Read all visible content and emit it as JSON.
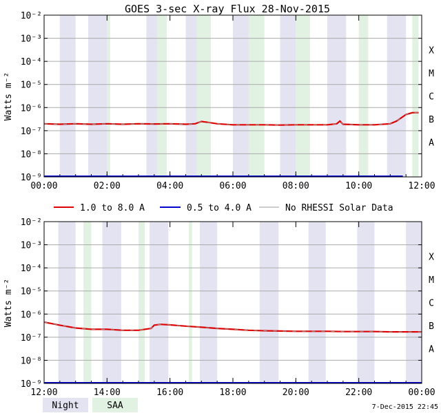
{
  "title": "GOES 3-sec X-ray Flux   28-Nov-2015",
  "ylabel": "Watts m⁻²",
  "footer_timestamp": "7-Dec-2015 22:45",
  "colors": {
    "long_channel": "#dd0000",
    "short_channel": "#0000cc",
    "no_rhessi": "#999999",
    "night_band": "#e3e3f1",
    "saa_band": "#e2f2e2",
    "grid": "#aaaaaa"
  },
  "legend": {
    "long": "1.0 to 8.0 A",
    "short": "0.5 to 4.0 A",
    "no_rhessi": "No RHESSI Solar Data",
    "night": "Night",
    "saa": "SAA"
  },
  "chart_data": [
    {
      "type": "line",
      "panel": "top",
      "ylog": true,
      "ylim": [
        1e-09,
        0.01
      ],
      "ytick_exponents": [
        -9,
        -8,
        -7,
        -6,
        -5,
        -4,
        -3,
        -2
      ],
      "flare_classes": [
        "A",
        "B",
        "C",
        "M",
        "X"
      ],
      "xlim_hours": [
        0,
        12
      ],
      "xticks": [
        "00:00",
        "02:00",
        "04:00",
        "06:00",
        "08:00",
        "10:00",
        "12:00"
      ],
      "night_hours": [
        [
          0.5,
          1.0
        ],
        [
          1.4,
          2.0
        ],
        [
          3.25,
          3.6
        ],
        [
          4.5,
          4.85
        ],
        [
          6.0,
          6.5
        ],
        [
          7.5,
          8.0
        ],
        [
          9.0,
          9.6
        ],
        [
          10.9,
          11.5
        ]
      ],
      "saa_hours": [
        [
          2.0,
          2.1
        ],
        [
          3.6,
          3.9
        ],
        [
          4.85,
          5.3
        ],
        [
          6.5,
          7.0
        ],
        [
          8.0,
          8.45
        ],
        [
          10.0,
          10.3
        ],
        [
          11.7,
          11.9
        ]
      ],
      "series": [
        {
          "name": "1.0 to 8.0 A",
          "x": [
            0,
            0.5,
            1.0,
            1.5,
            2.0,
            2.5,
            3.0,
            3.5,
            4.0,
            4.5,
            4.8,
            5.0,
            5.2,
            5.5,
            6.0,
            6.5,
            7.0,
            7.5,
            8.0,
            8.5,
            9.0,
            9.3,
            9.4,
            9.5,
            10.0,
            10.5,
            11.0,
            11.2,
            11.5,
            11.7,
            11.9
          ],
          "y": [
            2e-07,
            1.9e-07,
            2e-07,
            1.9e-07,
            2e-07,
            1.9e-07,
            2e-07,
            1.95e-07,
            2e-07,
            1.9e-07,
            2e-07,
            2.5e-07,
            2.3e-07,
            2e-07,
            1.8e-07,
            1.8e-07,
            1.8e-07,
            1.75e-07,
            1.8e-07,
            1.8e-07,
            1.8e-07,
            2e-07,
            2.6e-07,
            1.9e-07,
            1.8e-07,
            1.8e-07,
            2e-07,
            2.6e-07,
            5e-07,
            6e-07,
            6e-07
          ]
        },
        {
          "name": "0.5 to 4.0 A",
          "x": [
            0,
            11.4
          ],
          "y": [
            1e-09,
            1e-09
          ]
        }
      ]
    },
    {
      "type": "line",
      "panel": "bottom",
      "ylog": true,
      "ylim": [
        1e-09,
        0.01
      ],
      "ytick_exponents": [
        -9,
        -8,
        -7,
        -6,
        -5,
        -4,
        -3,
        -2
      ],
      "flare_classes": [
        "A",
        "B",
        "C",
        "M",
        "X"
      ],
      "xlim_hours": [
        12,
        24
      ],
      "xticks": [
        "12:00",
        "14:00",
        "16:00",
        "18:00",
        "20:00",
        "22:00",
        "00:00"
      ],
      "night_hours": [
        [
          12.45,
          13.0
        ],
        [
          13.85,
          14.45
        ],
        [
          15.35,
          15.95
        ],
        [
          16.95,
          17.5
        ],
        [
          18.85,
          19.45
        ],
        [
          20.4,
          20.95
        ],
        [
          21.95,
          22.5
        ],
        [
          23.5,
          24.0
        ]
      ],
      "saa_hours": [
        [
          13.25,
          13.5
        ],
        [
          15.0,
          15.2
        ],
        [
          16.6,
          16.7
        ]
      ],
      "series": [
        {
          "name": "1.0 to 8.0 A",
          "x": [
            12.0,
            12.5,
            13.0,
            13.5,
            14.0,
            14.5,
            15.0,
            15.4,
            15.5,
            15.7,
            16.0,
            16.5,
            17.0,
            17.5,
            18.0,
            18.5,
            19.0,
            19.5,
            20.0,
            20.5,
            21.0,
            21.5,
            22.0,
            22.5,
            23.0,
            23.5,
            24.0
          ],
          "y": [
            4.5e-07,
            3.3e-07,
            2.5e-07,
            2.2e-07,
            2.2e-07,
            2e-07,
            2e-07,
            2.4e-07,
            3.3e-07,
            3.6e-07,
            3.4e-07,
            3e-07,
            2.7e-07,
            2.4e-07,
            2.2e-07,
            2e-07,
            1.9e-07,
            1.85e-07,
            1.8e-07,
            1.8e-07,
            1.8e-07,
            1.75e-07,
            1.75e-07,
            1.75e-07,
            1.7e-07,
            1.7e-07,
            1.7e-07
          ]
        },
        {
          "name": "0.5 to 4.0 A",
          "x": [
            12.0,
            24.0
          ],
          "y": [
            1e-09,
            1e-09
          ]
        }
      ]
    }
  ]
}
